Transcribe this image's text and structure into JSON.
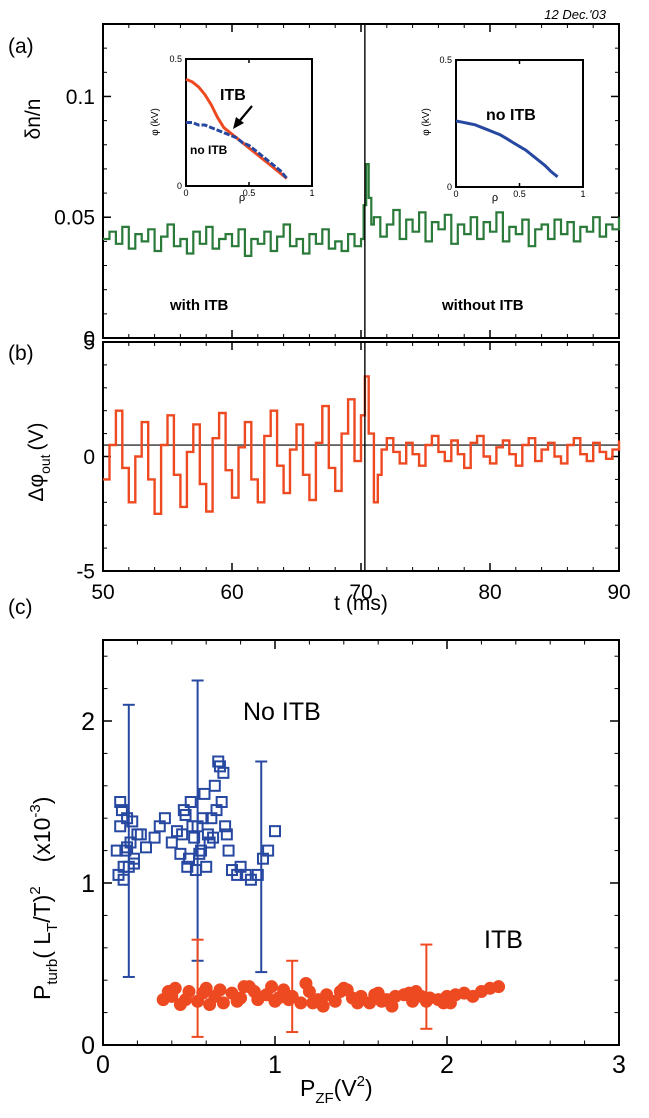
{
  "date_label": "12 Dec.'03",
  "colors": {
    "green": "#2a7a3a",
    "red": "#ee4a22",
    "blue": "#2748a0",
    "axis": "#000000"
  },
  "chart_data": [
    {
      "id": "a",
      "panel_label": "(a)",
      "type": "line",
      "ylabel": "δn/n",
      "xlim": [
        50,
        90
      ],
      "ylim": [
        0,
        0.13
      ],
      "yticks": [
        0,
        0.05,
        0.1
      ],
      "ytick_labels": [
        "0",
        "0.05",
        "0.1"
      ],
      "vline_x": 70.3,
      "text_left": "with ITB",
      "text_right": "without ITB",
      "series": [
        {
          "color": "#2a7a3a",
          "x": [
            50,
            50.5,
            51,
            51.5,
            52,
            52.5,
            53,
            53.5,
            54,
            54.5,
            55,
            55.5,
            56,
            56.5,
            57,
            57.5,
            58,
            58.5,
            59,
            59.5,
            60,
            60.5,
            61,
            61.5,
            62,
            62.5,
            63,
            63.5,
            64,
            64.5,
            65,
            65.5,
            66,
            66.5,
            67,
            67.5,
            68,
            68.5,
            69,
            69.5,
            70,
            70.2,
            70.4,
            70.6,
            70.8,
            71,
            71.5,
            72,
            72.5,
            73,
            73.5,
            74,
            74.5,
            75,
            75.5,
            76,
            76.5,
            77,
            77.5,
            78,
            78.5,
            79,
            79.5,
            80,
            80.5,
            81,
            81.5,
            82,
            82.5,
            83,
            83.5,
            84,
            84.5,
            85,
            85.5,
            86,
            86.5,
            87,
            87.5,
            88,
            88.5,
            89,
            89.5,
            90
          ],
          "y": [
            0.041,
            0.044,
            0.039,
            0.046,
            0.037,
            0.043,
            0.04,
            0.045,
            0.036,
            0.042,
            0.047,
            0.038,
            0.041,
            0.035,
            0.044,
            0.039,
            0.046,
            0.037,
            0.041,
            0.043,
            0.038,
            0.045,
            0.034,
            0.041,
            0.039,
            0.044,
            0.036,
            0.042,
            0.047,
            0.038,
            0.041,
            0.035,
            0.043,
            0.039,
            0.045,
            0.037,
            0.04,
            0.036,
            0.043,
            0.038,
            0.041,
            0.055,
            0.072,
            0.058,
            0.047,
            0.05,
            0.042,
            0.047,
            0.053,
            0.041,
            0.049,
            0.044,
            0.052,
            0.04,
            0.048,
            0.045,
            0.051,
            0.039,
            0.047,
            0.043,
            0.05,
            0.041,
            0.048,
            0.044,
            0.052,
            0.04,
            0.046,
            0.043,
            0.049,
            0.038,
            0.045,
            0.047,
            0.041,
            0.049,
            0.043,
            0.048,
            0.04,
            0.046,
            0.044,
            0.05,
            0.042,
            0.047,
            0.045,
            0.05
          ]
        }
      ],
      "insets": [
        {
          "position": "left",
          "xlabel": "ρ",
          "ylabel": "φ (kV)",
          "xlim": [
            0,
            1
          ],
          "ylim": [
            0,
            0.5
          ],
          "xticks": [
            0,
            0.5,
            1
          ],
          "xtick_labels": [
            "0",
            "0.5",
            "1"
          ],
          "yticks": [
            0,
            0.5
          ],
          "ytick_labels": [
            "0",
            "0.5"
          ],
          "labels": [
            {
              "text": "ITB",
              "color": "#ee4a22"
            },
            {
              "text": "no ITB",
              "color": "#2748a0"
            }
          ],
          "series": [
            {
              "name": "ITB",
              "color": "#ee4a22",
              "x": [
                0,
                0.05,
                0.1,
                0.15,
                0.2,
                0.25,
                0.3,
                0.35,
                0.4,
                0.45,
                0.5,
                0.55,
                0.6,
                0.65,
                0.7,
                0.75,
                0.8
              ],
              "y": [
                0.42,
                0.41,
                0.39,
                0.36,
                0.32,
                0.27,
                0.23,
                0.21,
                0.19,
                0.17,
                0.15,
                0.13,
                0.11,
                0.09,
                0.07,
                0.05,
                0.03
              ]
            },
            {
              "name": "no ITB",
              "color": "#2748a0",
              "x": [
                0,
                0.05,
                0.1,
                0.15,
                0.2,
                0.25,
                0.3,
                0.35,
                0.4,
                0.45,
                0.5,
                0.55,
                0.6,
                0.65,
                0.7,
                0.75,
                0.8
              ],
              "y": [
                0.25,
                0.25,
                0.24,
                0.24,
                0.23,
                0.22,
                0.21,
                0.2,
                0.19,
                0.17,
                0.16,
                0.14,
                0.12,
                0.1,
                0.08,
                0.06,
                0.03
              ]
            }
          ]
        },
        {
          "position": "right",
          "xlabel": "ρ",
          "ylabel": "φ (kV)",
          "xlim": [
            0,
            1
          ],
          "ylim": [
            0,
            0.5
          ],
          "xticks": [
            0,
            0.5,
            1
          ],
          "xtick_labels": [
            "0",
            "0.5",
            "1"
          ],
          "yticks": [
            0,
            0.5
          ],
          "ytick_labels": [
            "0",
            "0.5"
          ],
          "labels": [
            {
              "text": "no ITB",
              "color": "#2748a0"
            }
          ],
          "series": [
            {
              "name": "no ITB",
              "color": "#2748a0",
              "x": [
                0,
                0.05,
                0.1,
                0.15,
                0.2,
                0.25,
                0.3,
                0.35,
                0.4,
                0.45,
                0.5,
                0.55,
                0.6,
                0.65,
                0.7,
                0.75,
                0.8
              ],
              "y": [
                0.26,
                0.255,
                0.25,
                0.245,
                0.235,
                0.225,
                0.215,
                0.205,
                0.19,
                0.175,
                0.16,
                0.145,
                0.125,
                0.105,
                0.085,
                0.06,
                0.04
              ]
            }
          ]
        }
      ]
    },
    {
      "id": "b",
      "panel_label": "(b)",
      "type": "line",
      "ylabel": "Δφ_out (V)",
      "ylabel_main": "Δφ",
      "ylabel_sub": "out",
      "ylabel_unit": "(V)",
      "xlabel": "t (ms)",
      "xlim": [
        50,
        90
      ],
      "ylim": [
        -5,
        5
      ],
      "xticks": [
        50,
        60,
        70,
        80,
        90
      ],
      "xtick_labels": [
        "50",
        "60",
        "70",
        "80",
        "90"
      ],
      "yticks": [
        -5,
        0,
        5
      ],
      "ytick_labels": [
        "-5",
        "0",
        "5"
      ],
      "hline_y": 0.5,
      "vline_x": 70.3,
      "series": [
        {
          "color": "#ee4a22",
          "x": [
            50,
            50.5,
            51,
            51.5,
            52,
            52.5,
            53,
            53.5,
            54,
            54.5,
            55,
            55.5,
            56,
            56.5,
            57,
            57.5,
            58,
            58.5,
            59,
            59.5,
            60,
            60.5,
            61,
            61.5,
            62,
            62.5,
            63,
            63.5,
            64,
            64.5,
            65,
            65.5,
            66,
            66.5,
            67,
            67.5,
            68,
            68.5,
            69,
            69.5,
            70,
            70.3,
            70.6,
            71,
            71.3,
            71.6,
            72,
            72.5,
            73,
            73.5,
            74,
            74.5,
            75,
            75.5,
            76,
            76.5,
            77,
            77.5,
            78,
            78.5,
            79,
            79.5,
            80,
            80.5,
            81,
            81.5,
            82,
            82.5,
            83,
            83.5,
            84,
            84.5,
            85,
            85.5,
            86,
            86.5,
            87,
            87.5,
            88,
            88.5,
            89,
            89.5,
            90
          ],
          "y": [
            -1.0,
            0.5,
            2.0,
            -0.5,
            -2.0,
            0.0,
            1.5,
            -1.0,
            -2.5,
            0.5,
            1.8,
            -0.8,
            -2.2,
            0.2,
            1.4,
            -1.2,
            -2.4,
            0.8,
            1.9,
            -0.6,
            -1.8,
            0.4,
            1.5,
            -1.0,
            -2.0,
            0.9,
            2.0,
            -0.4,
            -1.6,
            0.3,
            1.4,
            -0.8,
            -1.9,
            0.6,
            2.2,
            -0.5,
            -1.5,
            1.0,
            2.5,
            -0.2,
            1.8,
            3.5,
            1.0,
            -2.0,
            -0.8,
            0.3,
            0.8,
            0.2,
            -0.3,
            0.6,
            0.1,
            -0.4,
            0.5,
            0.9,
            0.2,
            -0.2,
            0.7,
            0.1,
            -0.5,
            0.6,
            0.9,
            0.0,
            -0.3,
            0.4,
            0.7,
            0.1,
            -0.4,
            0.5,
            0.8,
            -0.2,
            0.3,
            0.6,
            0.0,
            -0.3,
            0.5,
            0.8,
            0.1,
            -0.2,
            0.6,
            0.2,
            -0.1,
            0.3,
            0.7
          ]
        }
      ]
    },
    {
      "id": "c",
      "panel_label": "(c)",
      "type": "scatter",
      "ylabel": "P_turb(L_T/T)^2 (x10^-3)",
      "ylabel_p": "P",
      "ylabel_turb": "turb",
      "ylabel_lt": "( L",
      "ylabel_t": "T",
      "ylabel_rest": "/T)",
      "ylabel_sq": "2",
      "ylabel_scale": "(x10",
      "ylabel_exp": "-3",
      "ylabel_close": ")",
      "xlabel": "P_ZF(V^2)",
      "xlabel_p": "P",
      "xlabel_zf": "ZF",
      "xlabel_unit": "(V",
      "xlabel_sq": "2",
      "xlabel_close": ")",
      "xlim": [
        0,
        3
      ],
      "ylim": [
        0,
        2.5
      ],
      "xticks": [
        0,
        1,
        2,
        3
      ],
      "xtick_labels": [
        "0",
        "1",
        "2",
        "3"
      ],
      "yticks": [
        0,
        1,
        2
      ],
      "ytick_labels": [
        "0",
        "1",
        "2"
      ],
      "text_labels": [
        {
          "text": "No ITB",
          "color": "#2748a0"
        },
        {
          "text": "ITB",
          "color": "#ee4a22"
        }
      ],
      "series": [
        {
          "name": "No ITB",
          "color": "#2748a0",
          "marker": "square",
          "x": [
            0.08,
            0.1,
            0.12,
            0.14,
            0.16,
            0.18,
            0.2,
            0.09,
            0.11,
            0.13,
            0.15,
            0.17,
            0.22,
            0.25,
            0.3,
            0.33,
            0.36,
            0.4,
            0.43,
            0.45,
            0.47,
            0.49,
            0.51,
            0.53,
            0.55,
            0.57,
            0.59,
            0.61,
            0.63,
            0.65,
            0.67,
            0.69,
            0.71,
            0.73,
            0.75,
            0.78,
            0.8,
            0.83,
            0.86,
            0.9,
            0.93,
            0.96,
            1.0,
            0.46,
            0.5,
            0.54,
            0.58,
            0.62,
            0.66,
            0.7,
            0.68,
            0.72,
            0.6,
            0.64,
            0.1,
            0.12,
            0.14,
            0.18,
            0.48,
            0.52,
            0.56
          ],
          "y": [
            1.2,
            1.35,
            1.1,
            1.4,
            1.25,
            1.15,
            1.3,
            1.05,
            1.45,
            1.2,
            1.1,
            1.38,
            1.3,
            1.22,
            1.28,
            1.35,
            1.4,
            1.25,
            1.32,
            1.18,
            1.45,
            1.1,
            1.5,
            1.28,
            1.35,
            1.2,
            1.55,
            1.3,
            1.4,
            1.6,
            1.75,
            1.5,
            1.35,
            1.2,
            1.08,
            1.05,
            1.1,
            1.05,
            1.02,
            1.05,
            1.15,
            1.2,
            1.32,
            1.3,
            1.15,
            1.08,
            1.4,
            1.25,
            1.45,
            1.68,
            1.72,
            1.3,
            1.1,
            1.28,
            1.5,
            1.02,
            1.22,
            1.12,
            1.42,
            1.35,
            1.18
          ]
        },
        {
          "name": "ITB",
          "color": "#ee4a22",
          "marker": "circle",
          "x": [
            0.35,
            0.4,
            0.45,
            0.5,
            0.55,
            0.6,
            0.65,
            0.7,
            0.75,
            0.8,
            0.85,
            0.9,
            0.95,
            1.0,
            1.05,
            1.1,
            1.15,
            1.2,
            1.25,
            1.3,
            1.35,
            1.4,
            1.45,
            1.5,
            1.55,
            1.6,
            1.65,
            1.7,
            1.75,
            1.8,
            1.85,
            1.9,
            1.95,
            2.0,
            2.05,
            2.1,
            2.15,
            2.2,
            2.25,
            2.3,
            0.38,
            0.48,
            0.58,
            0.68,
            0.78,
            0.88,
            0.98,
            1.08,
            1.18,
            1.28,
            1.38,
            1.48,
            1.58,
            1.68,
            1.78,
            1.88,
            1.98,
            0.42,
            0.62,
            0.82,
            1.02,
            1.22,
            1.42,
            1.62,
            1.82,
            2.02
          ],
          "y": [
            0.28,
            0.3,
            0.25,
            0.33,
            0.27,
            0.35,
            0.3,
            0.26,
            0.32,
            0.29,
            0.36,
            0.28,
            0.31,
            0.27,
            0.34,
            0.3,
            0.26,
            0.33,
            0.28,
            0.31,
            0.27,
            0.35,
            0.29,
            0.3,
            0.26,
            0.32,
            0.28,
            0.3,
            0.31,
            0.27,
            0.3,
            0.29,
            0.28,
            0.3,
            0.31,
            0.32,
            0.3,
            0.33,
            0.35,
            0.36,
            0.33,
            0.28,
            0.32,
            0.34,
            0.27,
            0.33,
            0.36,
            0.28,
            0.38,
            0.24,
            0.33,
            0.26,
            0.31,
            0.24,
            0.32,
            0.27,
            0.26,
            0.35,
            0.25,
            0.36,
            0.29,
            0.26,
            0.34,
            0.27,
            0.33,
            0.26
          ]
        }
      ],
      "errorbars": [
        {
          "color": "#2748a0",
          "x": 0.15,
          "ylow": 0.42,
          "yhigh": 2.1
        },
        {
          "color": "#2748a0",
          "x": 0.55,
          "ylow": 0.52,
          "yhigh": 2.25
        },
        {
          "color": "#2748a0",
          "x": 0.92,
          "ylow": 0.45,
          "yhigh": 1.75
        },
        {
          "color": "#ee4a22",
          "x": 0.55,
          "ylow": 0.05,
          "yhigh": 0.65
        },
        {
          "color": "#ee4a22",
          "x": 1.1,
          "ylow": 0.08,
          "yhigh": 0.52
        },
        {
          "color": "#ee4a22",
          "x": 1.88,
          "ylow": 0.1,
          "yhigh": 0.62
        }
      ]
    }
  ]
}
